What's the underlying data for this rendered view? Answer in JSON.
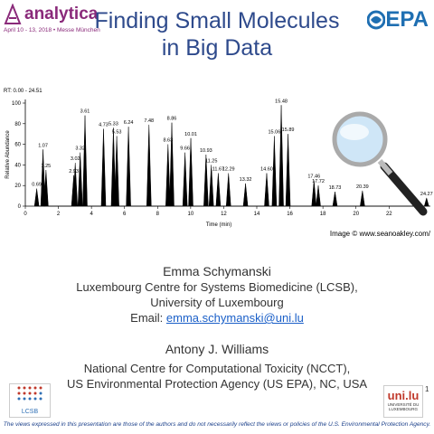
{
  "header": {
    "brand": "analytica",
    "event": "April 10 - 13, 2018 • Messe München",
    "title_lines": [
      "Finding Small Molecules",
      "in Big Data"
    ],
    "agency": "EPA"
  },
  "chromatogram": {
    "type": "line",
    "range_label": "RT: 0.00 - 24.51",
    "y_label": "Relative Abundance",
    "x_label": "Time (min)",
    "xlim": [
      0,
      24.5
    ],
    "xticks": [
      0,
      2,
      4,
      6,
      8,
      10,
      12,
      14,
      16,
      18,
      20,
      22
    ],
    "ylim": [
      0,
      100
    ],
    "yticks": [
      0,
      20,
      40,
      60,
      80,
      100
    ],
    "color": "#000000",
    "x": [
      0.69,
      1.07,
      1.25,
      2.93,
      3.02,
      3.32,
      3.61,
      4.73,
      5.33,
      5.53,
      6.24,
      7.48,
      8.63,
      8.86,
      9.66,
      10.01,
      10.93,
      11.25,
      11.67,
      12.29,
      13.32,
      14.6,
      15.06,
      15.48,
      15.89,
      17.46,
      17.72,
      18.73,
      20.39,
      24.27
    ],
    "values": [
      17,
      55,
      35,
      30,
      42,
      52,
      88,
      75,
      76,
      68,
      77,
      79,
      60,
      81,
      52,
      66,
      50,
      40,
      32,
      32,
      22,
      32,
      68,
      98,
      70,
      25,
      20,
      14,
      15,
      8
    ],
    "value_labels": [
      "0.69",
      "1.07",
      "1.25",
      "2.93",
      "3.02",
      "3.32",
      "3.61",
      "4.73",
      "5.33",
      "5.53",
      "6.24",
      "7.48",
      "8.63",
      "8.86",
      "9.66",
      "10.01",
      "10.93",
      "11.25",
      "11.67",
      "12.29",
      "13.32",
      "14.60",
      "15.06",
      "15.48",
      "15.89",
      "17.46",
      "17.72",
      "18.73",
      "20.39",
      "24.27"
    ],
    "credit": "Image © www.seanoakley.com/"
  },
  "authors": [
    {
      "name": "Emma Schymanski",
      "lines": [
        "Luxembourg Centre for Systems Biomedicine (LCSB),",
        "University of Luxembourg"
      ],
      "email_prefix": "Email: ",
      "email": "emma.schymanski@uni.lu"
    },
    {
      "name": "Antony J. Williams",
      "lines": [
        "National Centre for Computational Toxicity (NCCT),",
        "US Environmental Protection Agency (US EPA), NC, USA"
      ]
    }
  ],
  "logos": {
    "left": "LCSB",
    "right": "UNIVERSITÉ DU LUXEMBOURG"
  },
  "page_number": "1",
  "disclaimer": "The views expressed in this presentation are those of the authors and do not necessarily reflect the views or policies of the U.S. Environmental Protection Agency."
}
